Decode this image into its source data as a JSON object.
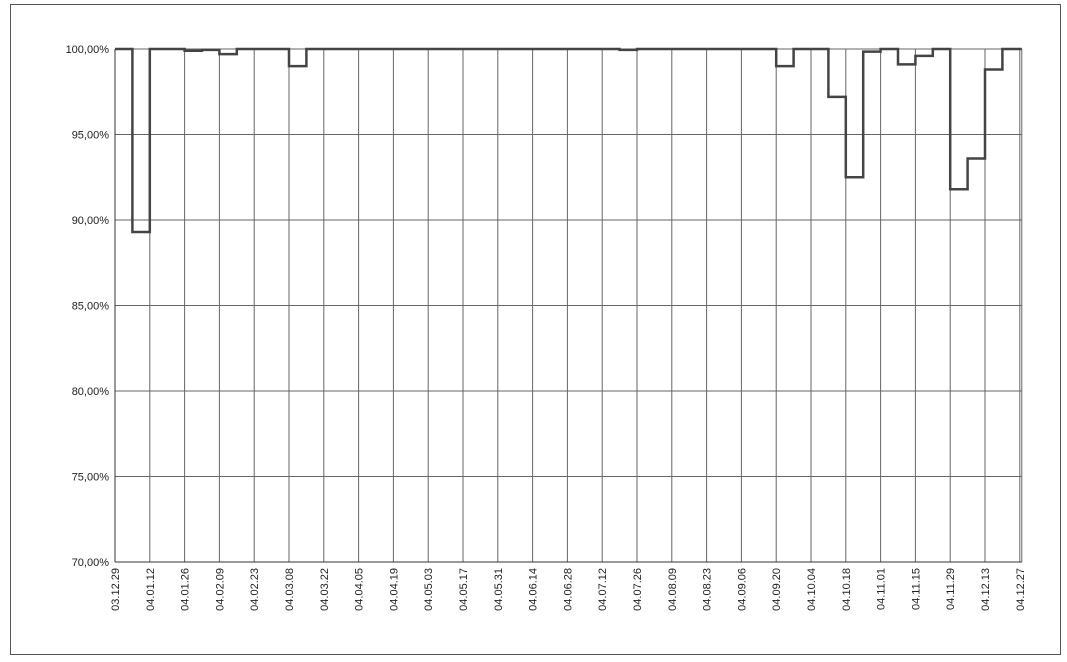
{
  "chart_data": {
    "type": "step",
    "categories": [
      "03.12.29",
      null,
      "04.01.12",
      null,
      "04.01.26",
      null,
      "04.02.09",
      null,
      "04.02.23",
      null,
      "04.03.08",
      null,
      "04.03.22",
      null,
      "04.04.05",
      null,
      "04.04.19",
      null,
      "04.05.03",
      null,
      "04.05.17",
      null,
      "04.05.31",
      null,
      "04.06.14",
      null,
      "04.06.28",
      null,
      "04.07.12",
      null,
      "04.07.26",
      null,
      "04.08.09",
      null,
      "04.08.23",
      null,
      "04.09.06",
      null,
      "04.09.20",
      null,
      "04.10.04",
      null,
      "04.10.18",
      null,
      "04.11.01",
      null,
      "04.11.15",
      null,
      "04.11.29",
      null,
      "04.12.13",
      null,
      "04.12.27"
    ],
    "values": [
      100,
      89.3,
      100,
      100,
      99.9,
      99.95,
      99.7,
      100,
      100,
      100,
      99,
      100,
      100,
      100,
      100,
      100,
      100,
      100,
      100,
      100,
      100,
      100,
      100,
      100,
      100,
      100,
      100,
      100,
      100,
      99.95,
      100,
      100,
      100,
      100,
      100,
      100,
      100,
      100,
      99,
      100,
      100,
      97.2,
      92.5,
      99.85,
      100,
      99.1,
      99.6,
      100,
      91.8,
      93.6,
      98.8,
      100,
      100
    ],
    "color": "#444444",
    "ylim": [
      70,
      100
    ],
    "yticks": [
      {
        "value": 70,
        "label": "70,00%"
      },
      {
        "value": 75,
        "label": "75,00%"
      },
      {
        "value": 80,
        "label": "80,00%"
      },
      {
        "value": 85,
        "label": "85,00%"
      },
      {
        "value": 90,
        "label": "90,00%"
      },
      {
        "value": 95,
        "label": "95,00%"
      },
      {
        "value": 100,
        "label": "100,00%"
      }
    ],
    "grid": true
  }
}
